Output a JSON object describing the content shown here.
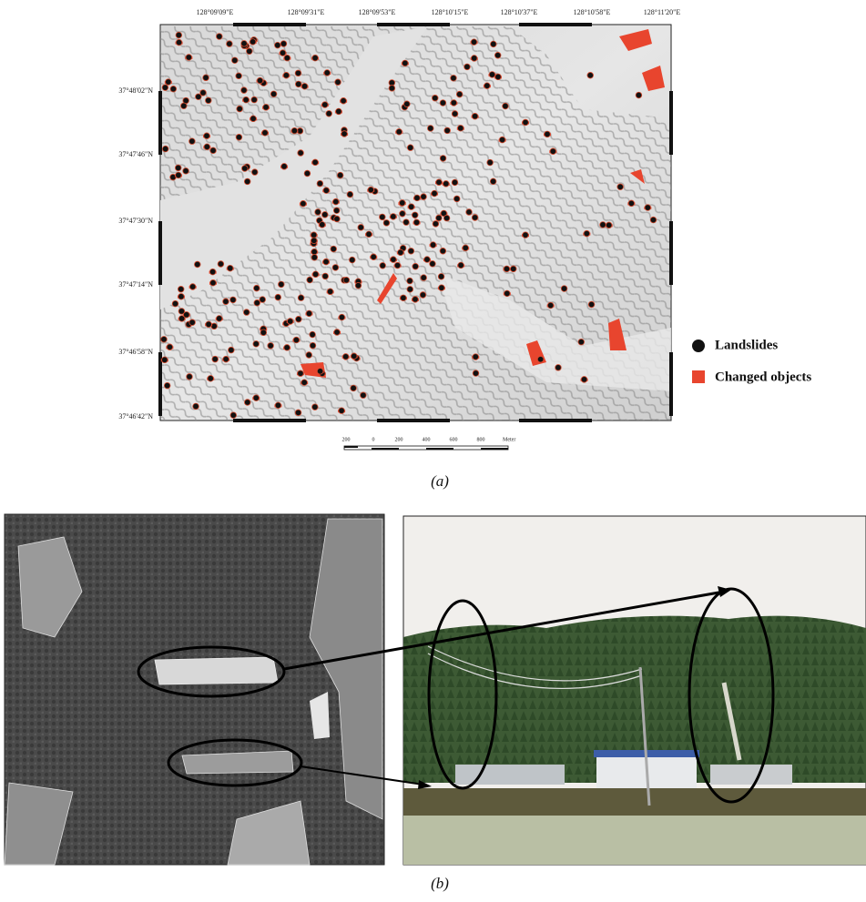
{
  "map": {
    "top_labels": [
      "128°09'09\"E",
      "128°09'31\"E",
      "128°09'53\"E",
      "128°10'15\"E",
      "128°10'37\"E",
      "128°10'58\"E",
      "128°11'20\"E"
    ],
    "left_labels": [
      "37°48'02\"N",
      "37°47'46\"N",
      "37°47'30\"N",
      "37°47'14\"N",
      "37°46'58\"N",
      "37°46'42\"N"
    ],
    "scale_labels": [
      "200",
      "0",
      "200",
      "400",
      "600",
      "800",
      "Meter"
    ],
    "legend": [
      "Landslides",
      "Changed objects"
    ],
    "caption": "(a)"
  },
  "photos": {
    "caption": "(b)"
  }
}
